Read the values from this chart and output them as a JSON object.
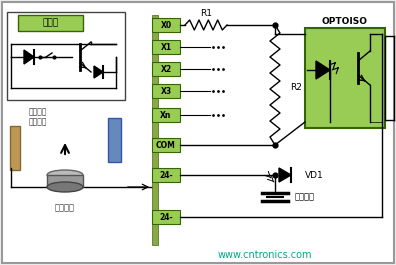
{
  "bg_color": "#eeeeee",
  "white": "#ffffff",
  "green_fill": "#99cc55",
  "green_dark": "#336600",
  "blue_fill": "#6688bb",
  "tan_fill": "#bb9955",
  "black": "#000000",
  "gray": "#888888",
  "watermark": "www.cntronics.com",
  "watermark_color": "#00aa88",
  "terminal_labels": [
    "X0",
    "X1",
    "X2",
    "X3",
    "Xn",
    "COM",
    "24-",
    "24-"
  ],
  "r1_label": "R1",
  "r2_label": "R2",
  "vd1_label": "VD1",
  "optoiso_label": "OPTOISO",
  "main_circuit_label": "主电路",
  "dc_label": "直流两线\n接近开关",
  "ext_power_label": "外置电源",
  "int_power_label": "内置电源"
}
